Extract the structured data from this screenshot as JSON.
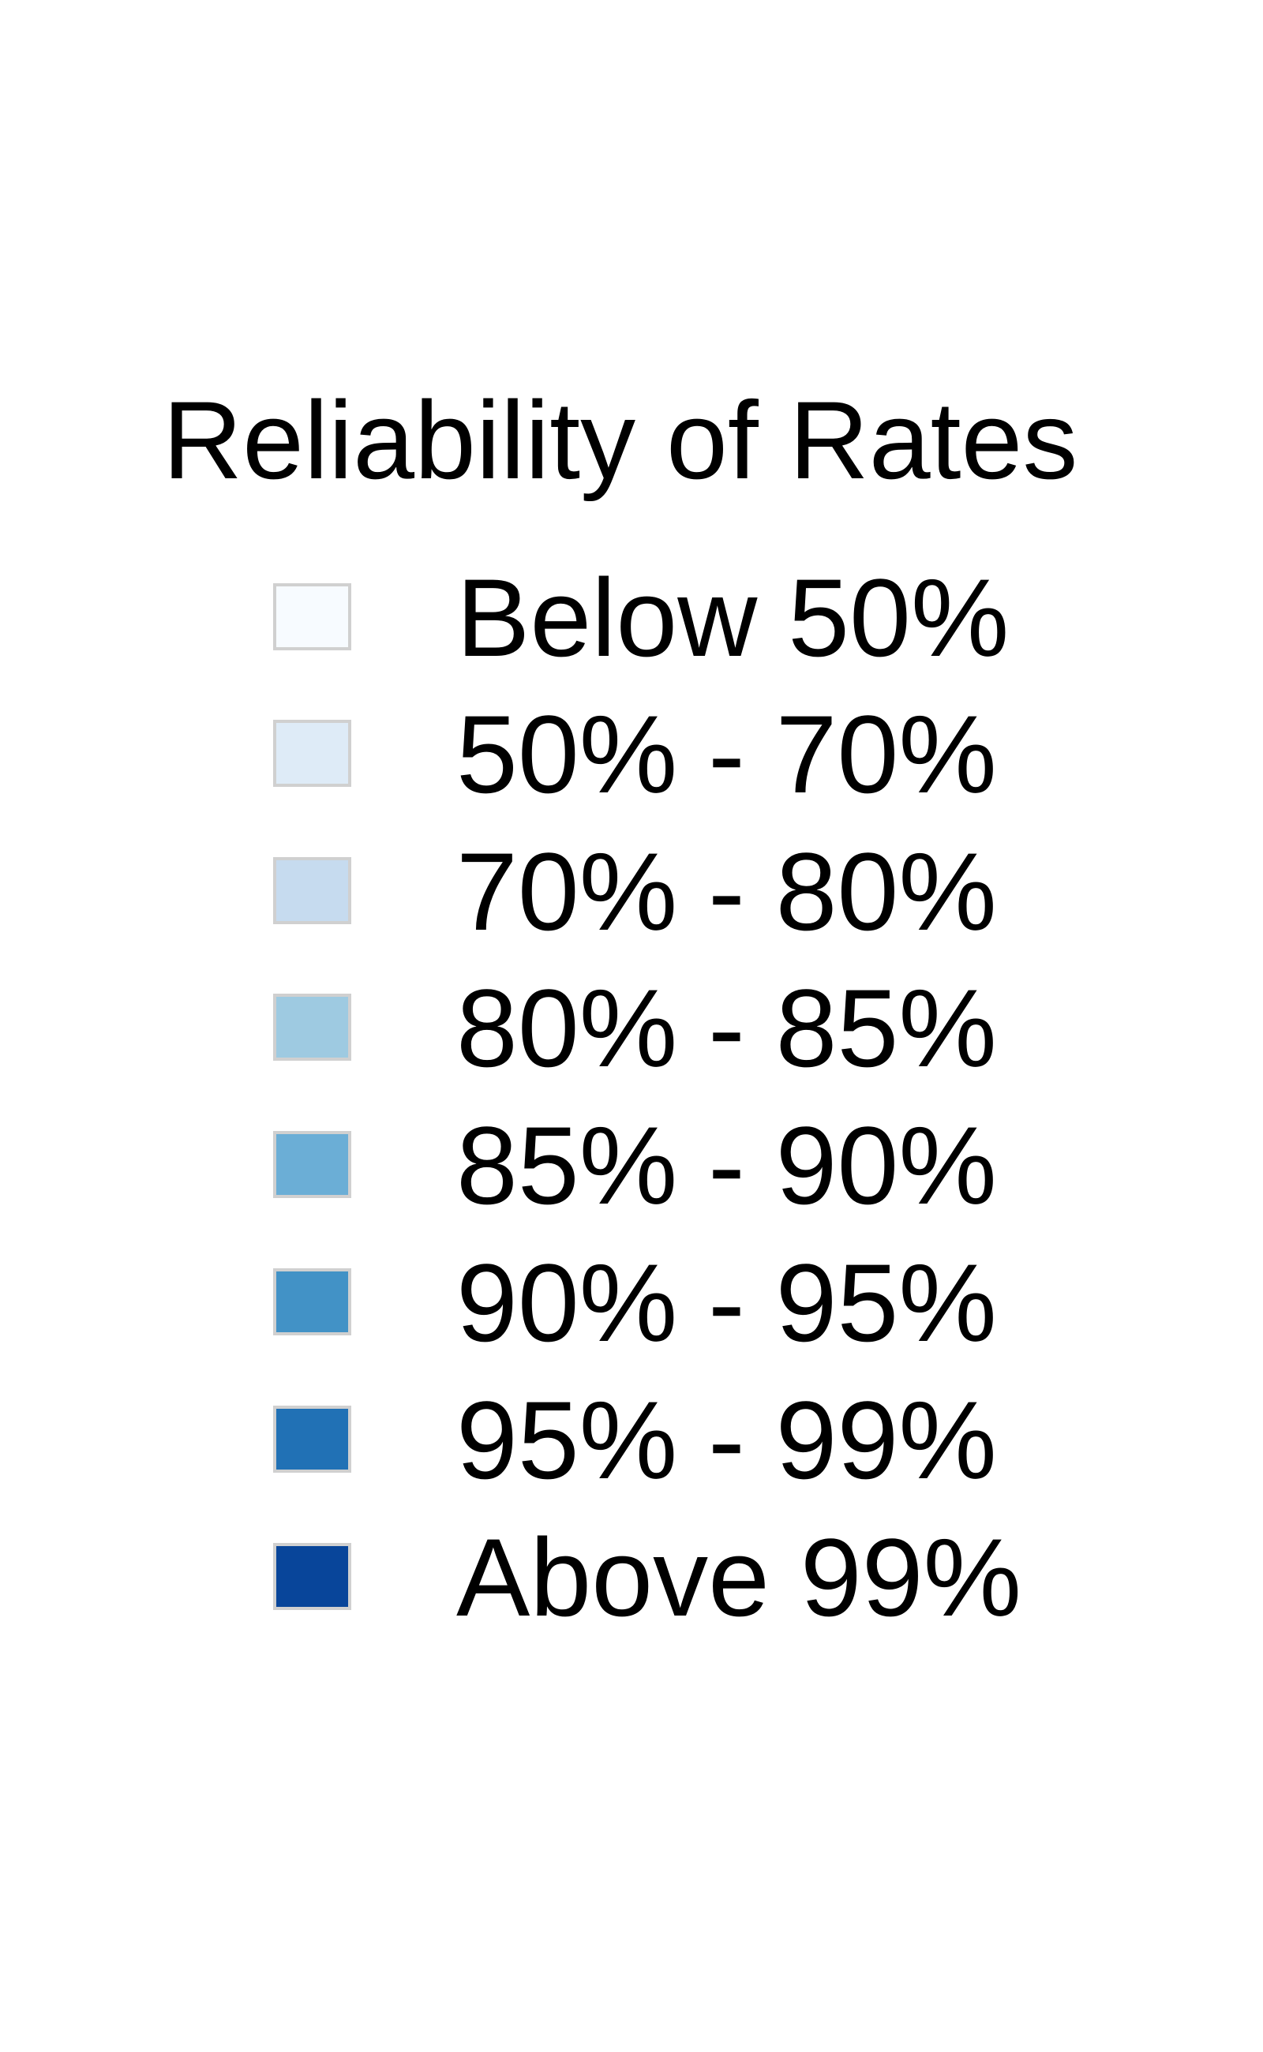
{
  "legend": {
    "title": "Reliability of Rates",
    "items": [
      {
        "label": "Below 50%",
        "color": "#f7fbff"
      },
      {
        "label": "50% - 70%",
        "color": "#deebf7"
      },
      {
        "label": "70% - 80%",
        "color": "#c6dbef"
      },
      {
        "label": "80% - 85%",
        "color": "#9ecae1"
      },
      {
        "label": "85% - 90%",
        "color": "#6baed6"
      },
      {
        "label": "90% - 95%",
        "color": "#4292c6"
      },
      {
        "label": "95% - 99%",
        "color": "#2171b5"
      },
      {
        "label": "Above 99%",
        "color": "#08459a"
      }
    ]
  }
}
